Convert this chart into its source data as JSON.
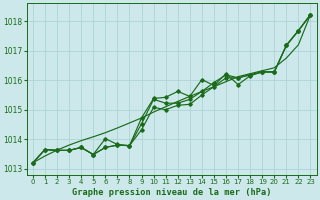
{
  "xlabel": "Graphe pression niveau de la mer (hPa)",
  "background_color": "#cce8ea",
  "grid_color": "#a8d0d4",
  "line_color": "#1a6b1a",
  "ylim": [
    1012.8,
    1018.6
  ],
  "xlim": [
    -0.5,
    23.5
  ],
  "yticks": [
    1013,
    1014,
    1015,
    1016,
    1017,
    1018
  ],
  "xticks": [
    0,
    1,
    2,
    3,
    4,
    5,
    6,
    7,
    8,
    9,
    10,
    11,
    12,
    13,
    14,
    15,
    16,
    17,
    18,
    19,
    20,
    21,
    22,
    23
  ],
  "series_marked": [
    [
      1013.2,
      1013.65,
      1013.62,
      1013.62,
      1013.72,
      1013.48,
      1013.72,
      1013.8,
      1013.78,
      1014.32,
      1015.08,
      1015.0,
      1015.15,
      1015.18,
      1015.5,
      1015.78,
      1016.08,
      1016.08,
      1016.18,
      1016.28,
      1016.28,
      1017.18,
      1017.68,
      1018.22
    ],
    [
      1013.2,
      1013.65,
      1013.62,
      1013.62,
      1013.72,
      1013.48,
      1014.02,
      1013.82,
      1013.78,
      1014.72,
      1015.38,
      1015.42,
      1015.62,
      1015.45,
      1016.02,
      1015.82,
      1016.22,
      1015.85,
      1016.15,
      1016.28,
      1016.28,
      1017.18,
      1017.68,
      1018.22
    ],
    [
      1013.2,
      1013.65,
      1013.62,
      1013.62,
      1013.72,
      1013.48,
      1013.72,
      1013.8,
      1013.78,
      1014.52,
      1015.35,
      1015.22,
      1015.22,
      1015.35,
      1015.62,
      1015.92,
      1016.18,
      1016.08,
      1016.18,
      1016.28,
      1016.28,
      1017.18,
      1017.68,
      1018.22
    ]
  ],
  "series_smooth": [
    [
      1013.2,
      1013.43,
      1013.63,
      1013.8,
      1013.95,
      1014.08,
      1014.22,
      1014.38,
      1014.55,
      1014.72,
      1014.92,
      1015.1,
      1015.28,
      1015.45,
      1015.62,
      1015.78,
      1015.95,
      1016.12,
      1016.22,
      1016.32,
      1016.42,
      1016.75,
      1017.2,
      1018.22
    ]
  ]
}
